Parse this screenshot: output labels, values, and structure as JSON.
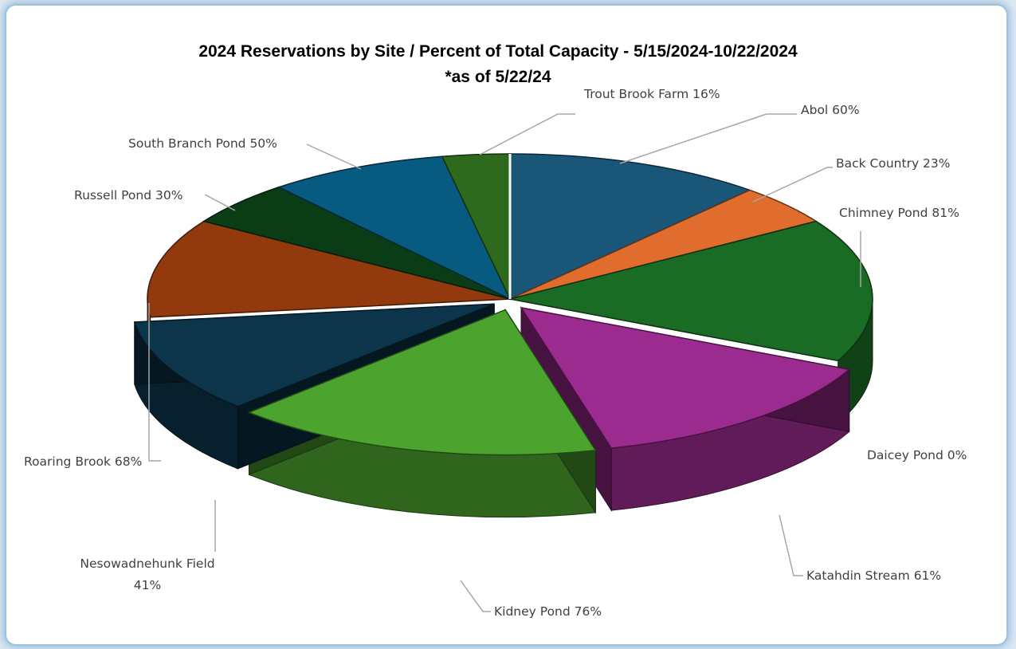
{
  "chart_data": {
    "type": "pie",
    "title": "2024 Reservations by Site / Percent of Total Capacity - 5/15/2024-10/22/2024",
    "subtitle": "*as of 5/22/24",
    "slices": [
      {
        "label": "Abol 60%",
        "value": 11.5,
        "color": "#1a5678",
        "exploded": false
      },
      {
        "label": "Back Country 23%",
        "value": 4.5,
        "color": "#e06d2e",
        "exploded": false
      },
      {
        "label": "Chimney Pond 81%",
        "value": 16.0,
        "color": "#1a6b24",
        "exploded": false
      },
      {
        "label": "Daicey Pond 0%",
        "value": 0.0,
        "color": "#6a6a6a",
        "exploded": false
      },
      {
        "label": "Katahdin Stream 61%",
        "value": 14.0,
        "color": "#9b2b8e",
        "exploded": true
      },
      {
        "label": "Kidney Pond 76%",
        "value": 16.5,
        "color": "#4ca32e",
        "exploded": true
      },
      {
        "label": "Nesowadnehunk Field 41%",
        "value": 10.5,
        "color": "#0c344a",
        "exploded": true
      },
      {
        "label": "Roaring Brook 68%",
        "value": 11.0,
        "color": "#92390d",
        "exploded": false
      },
      {
        "label": "Russell Pond 30%",
        "value": 5.0,
        "color": "#0a3d15",
        "exploded": false
      },
      {
        "label": "South Branch Pond 50%",
        "value": 8.0,
        "color": "#075a80",
        "exploded": false
      },
      {
        "label": "Trout Brook Farm 16%",
        "value": 3.0,
        "color": "#2e6a1e",
        "exploded": false
      }
    ],
    "legend": "none",
    "data_labels": "outside with leader lines"
  }
}
